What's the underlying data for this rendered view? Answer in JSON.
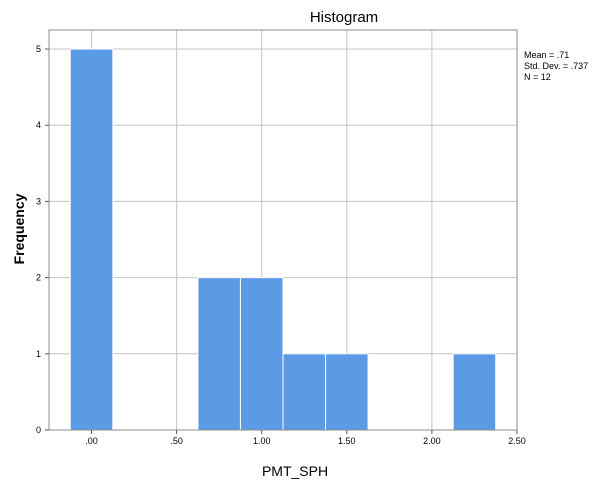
{
  "chart_data": {
    "type": "bar",
    "title": "Histogram",
    "xlabel": "PMT_SPH",
    "ylabel": "Frequency",
    "x_tick_labels": [
      ".00",
      ".50",
      "1.00",
      "1.50",
      "2.00",
      "2.50"
    ],
    "x_ticks": [
      0.0,
      0.5,
      1.0,
      1.5,
      2.0,
      2.5
    ],
    "y_ticks": [
      0,
      1,
      2,
      3,
      4,
      5
    ],
    "xlim": [
      -0.25,
      2.5
    ],
    "ylim": [
      0,
      5.25
    ],
    "bin_width": 0.25,
    "bins": [
      {
        "start": -0.125,
        "end": 0.125,
        "count": 5
      },
      {
        "start": 0.625,
        "end": 0.875,
        "count": 2
      },
      {
        "start": 0.875,
        "end": 1.125,
        "count": 2
      },
      {
        "start": 1.125,
        "end": 1.375,
        "count": 1
      },
      {
        "start": 1.375,
        "end": 1.625,
        "count": 1
      },
      {
        "start": 2.125,
        "end": 2.375,
        "count": 1
      }
    ],
    "bar_color": "#5b9be6",
    "grid": true,
    "stats": {
      "mean": "Mean = .71",
      "std_dev": "Std. Dev. = .737",
      "n": "N = 12"
    }
  }
}
